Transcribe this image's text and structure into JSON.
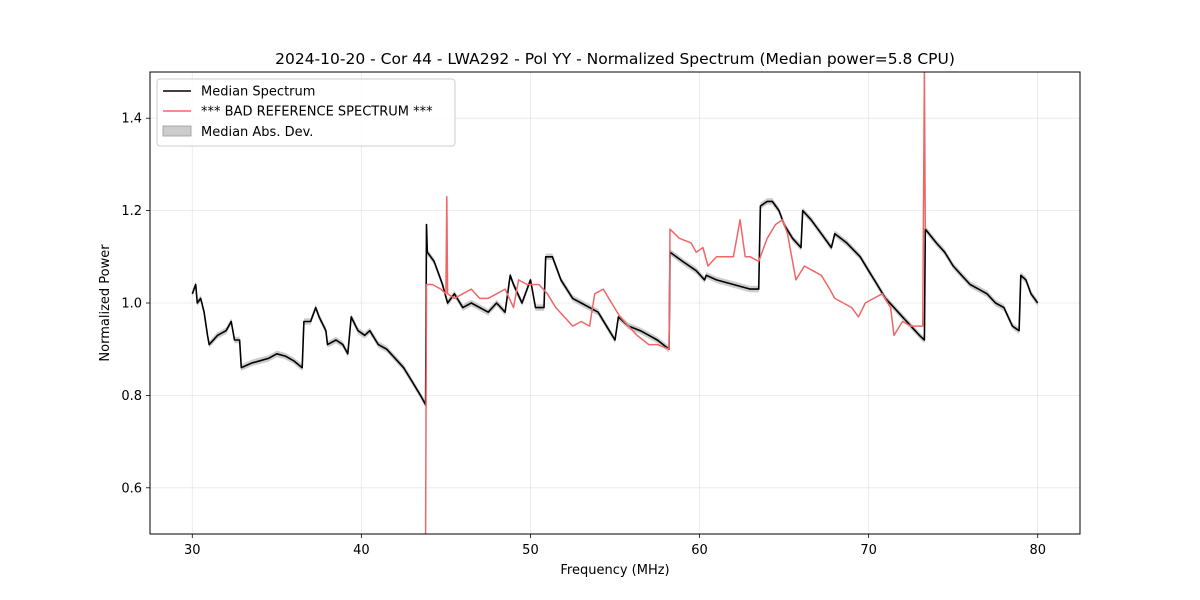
{
  "chart_data": {
    "type": "line",
    "title": "2024-10-20 - Cor 44 - LWA292 - Pol YY - Normalized Spectrum (Median power=5.8 CPU)",
    "xlabel": "Frequency (MHz)",
    "ylabel": "Normalized Power",
    "xlim": [
      27.5,
      82.5
    ],
    "ylim": [
      0.5,
      1.5
    ],
    "xticks": [
      30,
      40,
      50,
      60,
      70,
      80
    ],
    "yticks": [
      0.6,
      0.8,
      1.0,
      1.2,
      1.4
    ],
    "xtick_labels": [
      "30",
      "40",
      "50",
      "60",
      "70",
      "80"
    ],
    "ytick_labels": [
      "0.6",
      "0.8",
      "1.0",
      "1.2",
      "1.4"
    ],
    "grid": true,
    "legend": {
      "position": "top-left",
      "entries": [
        "Median Spectrum",
        "*** BAD REFERENCE SPECTRUM ***",
        "Median Abs. Dev."
      ]
    },
    "series": [
      {
        "name": "Median Spectrum",
        "color": "#000000",
        "points": [
          [
            30.0,
            1.02
          ],
          [
            30.2,
            1.04
          ],
          [
            30.3,
            1.0
          ],
          [
            30.5,
            1.01
          ],
          [
            30.7,
            0.98
          ],
          [
            30.9,
            0.93
          ],
          [
            31.0,
            0.91
          ],
          [
            31.5,
            0.93
          ],
          [
            32.0,
            0.94
          ],
          [
            32.3,
            0.96
          ],
          [
            32.5,
            0.92
          ],
          [
            32.8,
            0.92
          ],
          [
            32.9,
            0.86
          ],
          [
            33.5,
            0.87
          ],
          [
            34.0,
            0.875
          ],
          [
            34.5,
            0.88
          ],
          [
            35.0,
            0.89
          ],
          [
            35.5,
            0.885
          ],
          [
            36.0,
            0.875
          ],
          [
            36.5,
            0.86
          ],
          [
            36.6,
            0.96
          ],
          [
            37.0,
            0.96
          ],
          [
            37.3,
            0.99
          ],
          [
            37.5,
            0.97
          ],
          [
            37.9,
            0.94
          ],
          [
            38.0,
            0.91
          ],
          [
            38.5,
            0.92
          ],
          [
            38.9,
            0.91
          ],
          [
            39.2,
            0.89
          ],
          [
            39.4,
            0.97
          ],
          [
            39.8,
            0.94
          ],
          [
            40.2,
            0.93
          ],
          [
            40.5,
            0.94
          ],
          [
            41.0,
            0.91
          ],
          [
            41.5,
            0.9
          ],
          [
            42.0,
            0.88
          ],
          [
            42.5,
            0.86
          ],
          [
            43.0,
            0.83
          ],
          [
            43.5,
            0.8
          ],
          [
            43.8,
            0.78
          ],
          [
            43.85,
            1.17
          ],
          [
            43.9,
            1.11
          ],
          [
            44.3,
            1.09
          ],
          [
            44.8,
            1.04
          ],
          [
            45.1,
            1.0
          ],
          [
            45.5,
            1.02
          ],
          [
            46.0,
            0.99
          ],
          [
            46.5,
            1.0
          ],
          [
            47.0,
            0.99
          ],
          [
            47.5,
            0.98
          ],
          [
            48.0,
            1.0
          ],
          [
            48.5,
            0.98
          ],
          [
            48.8,
            1.06
          ],
          [
            49.0,
            1.04
          ],
          [
            49.5,
            1.0
          ],
          [
            50.0,
            1.05
          ],
          [
            50.3,
            0.99
          ],
          [
            50.8,
            0.99
          ],
          [
            50.9,
            1.1
          ],
          [
            51.3,
            1.1
          ],
          [
            51.8,
            1.05
          ],
          [
            52.5,
            1.01
          ],
          [
            53.0,
            1.0
          ],
          [
            53.5,
            0.99
          ],
          [
            54.0,
            0.98
          ],
          [
            54.5,
            0.95
          ],
          [
            55.0,
            0.92
          ],
          [
            55.2,
            0.97
          ],
          [
            55.8,
            0.95
          ],
          [
            56.5,
            0.94
          ],
          [
            57.0,
            0.93
          ],
          [
            57.5,
            0.92
          ],
          [
            58.2,
            0.9
          ],
          [
            58.25,
            1.11
          ],
          [
            59.0,
            1.09
          ],
          [
            59.8,
            1.07
          ],
          [
            60.3,
            1.05
          ],
          [
            60.4,
            1.06
          ],
          [
            61.0,
            1.05
          ],
          [
            62.0,
            1.04
          ],
          [
            63.0,
            1.03
          ],
          [
            63.5,
            1.03
          ],
          [
            63.6,
            1.21
          ],
          [
            64.0,
            1.22
          ],
          [
            64.3,
            1.22
          ],
          [
            64.7,
            1.2
          ],
          [
            65.0,
            1.17
          ],
          [
            65.5,
            1.14
          ],
          [
            66.0,
            1.12
          ],
          [
            66.1,
            1.2
          ],
          [
            66.6,
            1.18
          ],
          [
            67.2,
            1.15
          ],
          [
            67.8,
            1.12
          ],
          [
            68.0,
            1.15
          ],
          [
            68.7,
            1.13
          ],
          [
            69.5,
            1.1
          ],
          [
            70.0,
            1.07
          ],
          [
            70.5,
            1.04
          ],
          [
            71.0,
            1.01
          ],
          [
            71.5,
            0.99
          ],
          [
            72.0,
            0.97
          ],
          [
            72.5,
            0.95
          ],
          [
            73.0,
            0.93
          ],
          [
            73.3,
            0.92
          ],
          [
            73.35,
            1.16
          ],
          [
            74.0,
            1.13
          ],
          [
            74.5,
            1.11
          ],
          [
            75.0,
            1.08
          ],
          [
            75.5,
            1.06
          ],
          [
            76.0,
            1.04
          ],
          [
            76.5,
            1.03
          ],
          [
            77.0,
            1.02
          ],
          [
            77.5,
            1.0
          ],
          [
            78.0,
            0.99
          ],
          [
            78.5,
            0.95
          ],
          [
            78.9,
            0.94
          ],
          [
            79.0,
            1.06
          ],
          [
            79.3,
            1.05
          ],
          [
            79.6,
            1.02
          ],
          [
            80.0,
            1.0
          ]
        ]
      },
      {
        "name": "*** BAD REFERENCE SPECTRUM ***",
        "color": "#f06666",
        "points": [
          [
            43.8,
            0.5
          ],
          [
            43.85,
            1.04
          ],
          [
            44.2,
            1.04
          ],
          [
            44.7,
            1.03
          ],
          [
            45.0,
            1.02
          ],
          [
            45.05,
            1.23
          ],
          [
            45.1,
            1.02
          ],
          [
            45.5,
            1.01
          ],
          [
            46.0,
            1.02
          ],
          [
            46.5,
            1.03
          ],
          [
            47.0,
            1.01
          ],
          [
            47.5,
            1.01
          ],
          [
            48.0,
            1.02
          ],
          [
            48.5,
            1.03
          ],
          [
            49.0,
            0.99
          ],
          [
            49.3,
            1.05
          ],
          [
            49.8,
            1.04
          ],
          [
            50.5,
            1.04
          ],
          [
            51.0,
            1.02
          ],
          [
            51.5,
            0.99
          ],
          [
            52.0,
            0.97
          ],
          [
            52.5,
            0.95
          ],
          [
            53.0,
            0.96
          ],
          [
            53.5,
            0.95
          ],
          [
            53.8,
            1.02
          ],
          [
            54.3,
            1.03
          ],
          [
            54.8,
            1.0
          ],
          [
            55.3,
            0.97
          ],
          [
            55.8,
            0.95
          ],
          [
            56.3,
            0.93
          ],
          [
            57.0,
            0.91
          ],
          [
            57.5,
            0.91
          ],
          [
            58.2,
            0.9
          ],
          [
            58.25,
            1.16
          ],
          [
            58.8,
            1.14
          ],
          [
            59.5,
            1.13
          ],
          [
            59.8,
            1.11
          ],
          [
            60.2,
            1.12
          ],
          [
            60.5,
            1.08
          ],
          [
            61.0,
            1.1
          ],
          [
            61.5,
            1.1
          ],
          [
            62.0,
            1.1
          ],
          [
            62.4,
            1.18
          ],
          [
            62.7,
            1.1
          ],
          [
            63.0,
            1.1
          ],
          [
            63.5,
            1.09
          ],
          [
            64.0,
            1.14
          ],
          [
            64.5,
            1.17
          ],
          [
            64.9,
            1.18
          ],
          [
            65.2,
            1.15
          ],
          [
            65.7,
            1.05
          ],
          [
            66.2,
            1.08
          ],
          [
            66.7,
            1.07
          ],
          [
            67.2,
            1.06
          ],
          [
            67.7,
            1.03
          ],
          [
            68.0,
            1.01
          ],
          [
            68.5,
            1.0
          ],
          [
            69.0,
            0.99
          ],
          [
            69.4,
            0.97
          ],
          [
            69.8,
            1.0
          ],
          [
            70.3,
            1.01
          ],
          [
            70.8,
            1.02
          ],
          [
            71.3,
            0.99
          ],
          [
            71.5,
            0.93
          ],
          [
            72.0,
            0.96
          ],
          [
            72.5,
            0.95
          ],
          [
            73.2,
            0.95
          ],
          [
            73.3,
            1.5
          ],
          [
            73.35,
            1.16
          ]
        ]
      }
    ],
    "mad_band": {
      "name": "Median Abs. Dev.",
      "color": "#bfbfbf",
      "half_width": 0.007
    }
  }
}
